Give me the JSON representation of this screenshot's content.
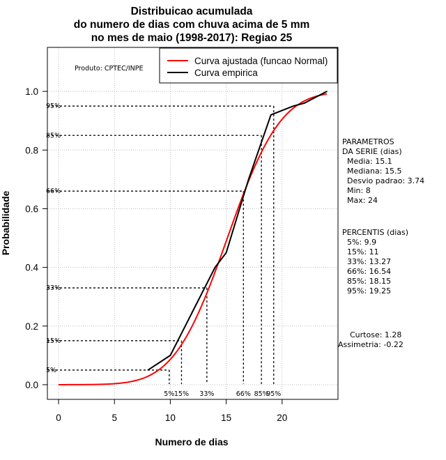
{
  "chart_data": {
    "type": "line",
    "title": [
      "Distribuicao acumulada",
      "do numero de dias com chuva acima de 5 mm",
      "no mes de maio (1998-2017): Regiao 25"
    ],
    "xlabel": "Numero de dias",
    "ylabel": "Probabilidade",
    "xlim": [
      -1,
      25
    ],
    "ylim": [
      -0.05,
      1.15
    ],
    "x_ticks": [
      0,
      5,
      10,
      15,
      20
    ],
    "y_ticks": [
      0.0,
      0.2,
      0.4,
      0.6,
      0.8,
      1.0
    ],
    "y_tick_labels": [
      "0.0",
      "0.2",
      "0.4",
      "0.6",
      "0.8",
      "1.0"
    ],
    "grid": true,
    "legend_position": "top-right",
    "producer": "Produto: CPTEC/INPE",
    "series": [
      {
        "name": "Curva ajustada (funcao Normal)",
        "color": "#ff0000",
        "kind": "normal-cdf",
        "mean": 15.1,
        "sd": 3.74,
        "x_from": 0,
        "x_to": 24
      },
      {
        "name": "Curva empirica",
        "color": "#000000",
        "x": [
          8,
          10,
          12,
          14,
          15,
          17,
          19,
          21,
          22,
          24
        ],
        "y": [
          0.05,
          0.1,
          0.25,
          0.4,
          0.45,
          0.7,
          0.92,
          0.95,
          0.96,
          1.0
        ]
      }
    ],
    "percentile_markers": [
      {
        "label": "5%",
        "y_label": "5%",
        "x": 9.9,
        "p": 0.05
      },
      {
        "label": "15%",
        "y_label": "15%",
        "x": 11,
        "p": 0.15
      },
      {
        "label": "33%",
        "y_label": "33%",
        "x": 13.27,
        "p": 0.33
      },
      {
        "label": "66%",
        "y_label": "66%",
        "x": 16.54,
        "p": 0.66
      },
      {
        "label": "85%",
        "y_label": "85%",
        "x": 18.15,
        "p": 0.85
      },
      {
        "label": "95%",
        "y_label": "95%",
        "x": 19.25,
        "p": 0.95
      }
    ],
    "parametros": {
      "heading": [
        "PARAMETROS",
        "DA SERIE (dias)"
      ],
      "lines": [
        "Media: 15.1",
        "Mediana: 15.5",
        "Desvio padrao: 3.74",
        "Min: 8",
        "Max: 24"
      ]
    },
    "percentis": {
      "heading": "PERCENTIS (dias)",
      "lines": [
        "5%: 9.9",
        "15%: 11",
        "33%: 13.27",
        "66%: 16.54",
        "85%: 18.15",
        "95%: 19.25"
      ]
    },
    "stats": [
      "Curtose: 1.28",
      "Assimetria: -0.22"
    ]
  }
}
